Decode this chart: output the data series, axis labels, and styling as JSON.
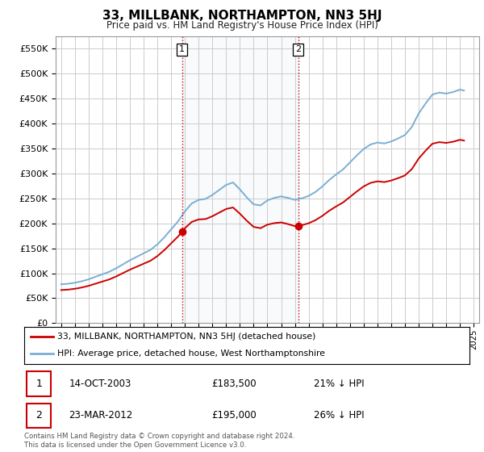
{
  "title": "33, MILLBANK, NORTHAMPTON, NN3 5HJ",
  "subtitle": "Price paid vs. HM Land Registry's House Price Index (HPI)",
  "ylabel_ticks": [
    "£0",
    "£50K",
    "£100K",
    "£150K",
    "£200K",
    "£250K",
    "£300K",
    "£350K",
    "£400K",
    "£450K",
    "£500K",
    "£550K"
  ],
  "ytick_values": [
    0,
    50000,
    100000,
    150000,
    200000,
    250000,
    300000,
    350000,
    400000,
    450000,
    500000,
    550000
  ],
  "ylim": [
    0,
    575000
  ],
  "hpi_color": "#7bafd4",
  "price_color": "#cc0000",
  "sale1_date": 2003.79,
  "sale1_price": 183500,
  "sale1_label": "1",
  "sale2_date": 2012.23,
  "sale2_price": 195000,
  "sale2_label": "2",
  "legend_property": "33, MILLBANK, NORTHAMPTON, NN3 5HJ (detached house)",
  "legend_hpi": "HPI: Average price, detached house, West Northamptonshire",
  "table_row1": [
    "1",
    "14-OCT-2003",
    "£183,500",
    "21% ↓ HPI"
  ],
  "table_row2": [
    "2",
    "23-MAR-2012",
    "£195,000",
    "26% ↓ HPI"
  ],
  "footer": "Contains HM Land Registry data © Crown copyright and database right 2024.\nThis data is licensed under the Open Government Licence v3.0.",
  "background_color": "#ffffff",
  "plot_bg_color": "#ffffff",
  "grid_color": "#cccccc",
  "vline_color": "#cc0000",
  "shading_color": "#dce6f1"
}
